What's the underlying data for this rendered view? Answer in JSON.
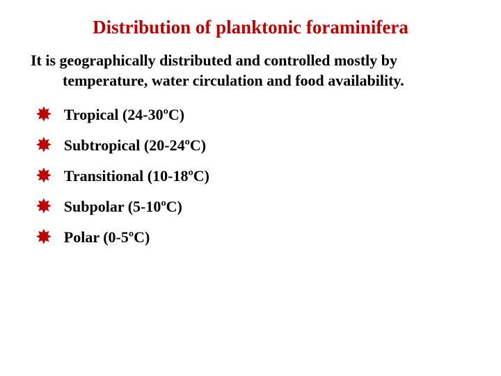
{
  "title": "Distribution of planktonic foraminifera",
  "intro_line1": "It is geographically distributed and controlled mostly by",
  "intro_line2": "temperature, water circulation and food availability.",
  "bullets": [
    "Tropical (24-30ºC)",
    "Subtropical (20-24ºC)",
    "Transitional (10-18ºC)",
    "Subpolar (5-10ºC)",
    "Polar (0-5ºC)"
  ],
  "colors": {
    "title": "#c00000",
    "text": "#000000",
    "bullet_icon": "#c00000",
    "background": "#ffffff"
  },
  "typography": {
    "title_fontsize": 27,
    "body_fontsize": 22,
    "font_family": "Times New Roman",
    "font_weight": "bold"
  },
  "bullet_glyph": "✸"
}
